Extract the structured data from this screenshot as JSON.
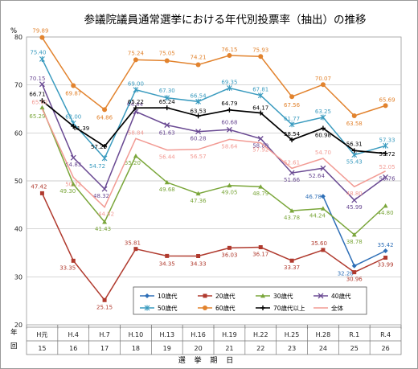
{
  "chart_data": {
    "type": "line",
    "title": "参議院議員通常選挙における年代別投票率（抽出）の推移",
    "ylabel": "%",
    "xlabel": "選 挙 期 日",
    "row_labels": {
      "year": "年",
      "kai": "回"
    },
    "ylim": [
      20,
      80
    ],
    "yticks": [
      20,
      30,
      40,
      50,
      60,
      70,
      80
    ],
    "categories": [
      "H元",
      "H.4",
      "H.7",
      "H.10",
      "H.13",
      "H.16",
      "H.19",
      "H.22",
      "H.25",
      "H.28",
      "R.1",
      "R.4"
    ],
    "kai": [
      "15",
      "16",
      "17",
      "18",
      "19",
      "20",
      "21",
      "22",
      "23",
      "24",
      "25",
      "26"
    ],
    "series": [
      {
        "name": "10歳代",
        "color": "#2e6fb7",
        "marker": "diamond",
        "values": [
          null,
          null,
          null,
          null,
          null,
          null,
          null,
          null,
          null,
          46.78,
          32.28,
          35.42
        ]
      },
      {
        "name": "20歳代",
        "color": "#b03a2e",
        "marker": "square",
        "values": [
          47.42,
          33.35,
          25.15,
          35.81,
          34.35,
          34.33,
          36.03,
          36.17,
          33.37,
          35.6,
          30.96,
          33.99
        ]
      },
      {
        "name": "30歳代",
        "color": "#7aa63a",
        "marker": "triangle",
        "values": [
          65.29,
          49.3,
          41.43,
          55.2,
          49.68,
          47.36,
          49.05,
          48.79,
          43.78,
          44.24,
          38.78,
          44.8
        ]
      },
      {
        "name": "40歳代",
        "color": "#6a4a93",
        "marker": "x",
        "values": [
          70.15,
          54.83,
          48.32,
          64.44,
          61.63,
          60.28,
          60.68,
          58.8,
          51.66,
          52.64,
          45.99,
          50.76
        ]
      },
      {
        "name": "50歳代",
        "color": "#3a9bbf",
        "marker": "star",
        "values": [
          75.4,
          62.0,
          54.72,
          69.0,
          67.3,
          66.54,
          69.35,
          67.81,
          61.77,
          63.25,
          55.43,
          57.33
        ]
      },
      {
        "name": "60歳代",
        "color": "#e2832e",
        "marker": "circle",
        "values": [
          79.89,
          69.87,
          64.86,
          75.24,
          75.05,
          74.21,
          76.15,
          75.93,
          67.56,
          70.07,
          63.58,
          65.69
        ]
      },
      {
        "name": "70歳代以上",
        "color": "#000000",
        "marker": "plus",
        "values": [
          66.71,
          61.39,
          57.2,
          65.22,
          65.24,
          63.53,
          64.79,
          64.17,
          58.54,
          60.98,
          56.31,
          55.72
        ]
      },
      {
        "name": "全体",
        "color": "#f29b94",
        "marker": "none",
        "values": [
          65.02,
          50.72,
          44.52,
          58.84,
          56.44,
          56.57,
          58.64,
          57.92,
          52.61,
          54.7,
          48.8,
          52.05
        ]
      }
    ],
    "grid": true,
    "legend_position": "bottom-center"
  }
}
